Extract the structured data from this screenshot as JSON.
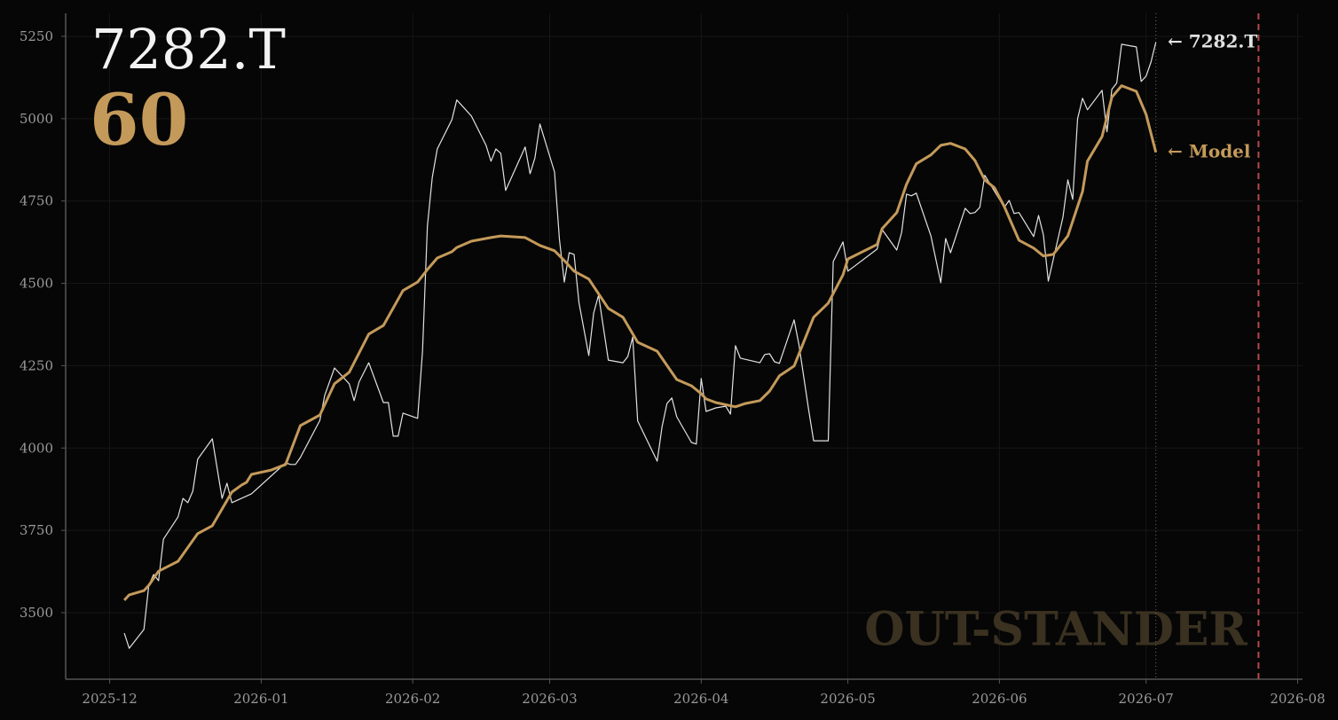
{
  "chart_data": {
    "type": "line",
    "title": "7282.T",
    "subtitle": "60",
    "watermark": "OUT-STANDER",
    "background": "#060606",
    "grid": true,
    "xlim": [
      "2025-11-22",
      "2026-08-02"
    ],
    "xticks": [
      "2025-12",
      "2026-01",
      "2026-02",
      "2026-03",
      "2026-04",
      "2026-05",
      "2026-06",
      "2026-07",
      "2026-08"
    ],
    "ylim": [
      3298,
      5320
    ],
    "yticks": [
      3500,
      3750,
      4000,
      4250,
      4500,
      4750,
      5000,
      5250
    ],
    "vlines": [
      {
        "x": "2026-07-03",
        "style": "dotted",
        "color": "#6a6a6a"
      },
      {
        "x": "2026-07-24",
        "style": "dashed",
        "color": "#b5474f"
      }
    ],
    "series": [
      {
        "name": "7282.T",
        "end_label": "← 7282.T",
        "color": "#e2e2e2",
        "width": 1.2,
        "x": [
          "2025-12-04",
          "2025-12-05",
          "2025-12-08",
          "2025-12-09",
          "2025-12-10",
          "2025-12-11",
          "2025-12-12",
          "2025-12-15",
          "2025-12-16",
          "2025-12-17",
          "2025-12-18",
          "2025-12-19",
          "2025-12-22",
          "2025-12-24",
          "2025-12-25",
          "2025-12-26",
          "2025-12-30",
          "2026-01-06",
          "2026-01-07",
          "2026-01-08",
          "2026-01-09",
          "2026-01-13",
          "2026-01-14",
          "2026-01-16",
          "2026-01-19",
          "2026-01-20",
          "2026-01-21",
          "2026-01-23",
          "2026-01-26",
          "2026-01-27",
          "2026-01-28",
          "2026-01-29",
          "2026-01-30",
          "2026-02-02",
          "2026-02-03",
          "2026-02-04",
          "2026-02-05",
          "2026-02-06",
          "2026-02-09",
          "2026-02-10",
          "2026-02-13",
          "2026-02-16",
          "2026-02-17",
          "2026-02-18",
          "2026-02-19",
          "2026-02-20",
          "2026-02-24",
          "2026-02-25",
          "2026-02-26",
          "2026-02-27",
          "2026-03-02",
          "2026-03-03",
          "2026-03-04",
          "2026-03-05",
          "2026-03-06",
          "2026-03-07",
          "2026-03-09",
          "2026-03-10",
          "2026-03-11",
          "2026-03-13",
          "2026-03-16",
          "2026-03-17",
          "2026-03-18",
          "2026-03-19",
          "2026-03-23",
          "2026-03-24",
          "2026-03-25",
          "2026-03-26",
          "2026-03-27",
          "2026-03-30",
          "2026-03-31",
          "2026-04-01",
          "2026-04-02",
          "2026-04-04",
          "2026-04-06",
          "2026-04-07",
          "2026-04-08",
          "2026-04-09",
          "2026-04-13",
          "2026-04-14",
          "2026-04-15",
          "2026-04-16",
          "2026-04-17",
          "2026-04-20",
          "2026-04-21",
          "2026-04-23",
          "2026-04-24",
          "2026-04-27",
          "2026-04-28",
          "2026-04-30",
          "2026-05-01",
          "2026-05-07",
          "2026-05-08",
          "2026-05-11",
          "2026-05-12",
          "2026-05-13",
          "2026-05-14",
          "2026-05-15",
          "2026-05-18",
          "2026-05-20",
          "2026-05-21",
          "2026-05-22",
          "2026-05-25",
          "2026-05-26",
          "2026-05-27",
          "2026-05-28",
          "2026-05-29",
          "2026-06-02",
          "2026-06-03",
          "2026-06-04",
          "2026-06-05",
          "2026-06-08",
          "2026-06-09",
          "2026-06-10",
          "2026-06-11",
          "2026-06-14",
          "2026-06-15",
          "2026-06-16",
          "2026-06-17",
          "2026-06-18",
          "2026-06-19",
          "2026-06-22",
          "2026-06-23",
          "2026-06-24",
          "2026-06-25",
          "2026-06-26",
          "2026-06-29",
          "2026-06-30",
          "2026-07-01",
          "2026-07-02",
          "2026-07-03"
        ],
        "values": [
          3438,
          3392,
          3449,
          3583,
          3616,
          3597,
          3723,
          3791,
          3847,
          3834,
          3869,
          3966,
          4028,
          3847,
          3893,
          3834,
          3861,
          3955,
          3950,
          3950,
          3971,
          4084,
          4160,
          4243,
          4195,
          4144,
          4200,
          4259,
          4138,
          4138,
          4036,
          4036,
          4106,
          4090,
          4294,
          4674,
          4822,
          4908,
          4997,
          5057,
          5008,
          4919,
          4871,
          4908,
          4895,
          4782,
          4914,
          4833,
          4881,
          4984,
          4838,
          4634,
          4504,
          4593,
          4588,
          4442,
          4281,
          4410,
          4464,
          4267,
          4259,
          4278,
          4337,
          4082,
          3960,
          4065,
          4135,
          4152,
          4095,
          4017,
          4012,
          4211,
          4111,
          4122,
          4127,
          4103,
          4311,
          4273,
          4259,
          4284,
          4286,
          4262,
          4257,
          4389,
          4313,
          4114,
          4022,
          4022,
          4566,
          4626,
          4537,
          4604,
          4663,
          4601,
          4655,
          4771,
          4766,
          4774,
          4644,
          4502,
          4636,
          4593,
          4728,
          4712,
          4715,
          4731,
          4828,
          4731,
          4752,
          4712,
          4715,
          4642,
          4706,
          4647,
          4507,
          4701,
          4814,
          4755,
          5000,
          5062,
          5027,
          5086,
          4960,
          5089,
          5108,
          5226,
          5218,
          5113,
          5129,
          5172,
          5232
        ]
      },
      {
        "name": "Model",
        "end_label": "← Model",
        "color": "#c49a5a",
        "width": 3,
        "x": [
          "2025-12-04",
          "2025-12-05",
          "2025-12-08",
          "2025-12-09",
          "2025-12-11",
          "2025-12-15",
          "2025-12-19",
          "2025-12-22",
          "2025-12-26",
          "2025-12-28",
          "2025-12-29",
          "2025-12-30",
          "2026-01-03",
          "2026-01-06",
          "2026-01-09",
          "2026-01-13",
          "2026-01-16",
          "2026-01-19",
          "2026-01-23",
          "2026-01-26",
          "2026-01-30",
          "2026-02-02",
          "2026-02-04",
          "2026-02-06",
          "2026-02-09",
          "2026-02-10",
          "2026-02-13",
          "2026-02-17",
          "2026-02-19",
          "2026-02-24",
          "2026-02-27",
          "2026-03-02",
          "2026-03-04",
          "2026-03-06",
          "2026-03-09",
          "2026-03-13",
          "2026-03-16",
          "2026-03-19",
          "2026-03-23",
          "2026-03-27",
          "2026-03-30",
          "2026-04-01",
          "2026-04-02",
          "2026-04-04",
          "2026-04-08",
          "2026-04-10",
          "2026-04-13",
          "2026-04-15",
          "2026-04-17",
          "2026-04-20",
          "2026-04-24",
          "2026-04-27",
          "2026-04-30",
          "2026-05-01",
          "2026-05-07",
          "2026-05-08",
          "2026-05-11",
          "2026-05-13",
          "2026-05-15",
          "2026-05-18",
          "2026-05-20",
          "2026-05-22",
          "2026-05-25",
          "2026-05-27",
          "2026-05-29",
          "2026-05-31",
          "2026-06-02",
          "2026-06-05",
          "2026-06-08",
          "2026-06-10",
          "2026-06-12",
          "2026-06-15",
          "2026-06-18",
          "2026-06-19",
          "2026-06-22",
          "2026-06-24",
          "2026-06-26",
          "2026-06-29",
          "2026-07-01",
          "2026-07-03"
        ],
        "values": [
          3538,
          3554,
          3567,
          3583,
          3626,
          3656,
          3740,
          3764,
          3866,
          3888,
          3896,
          3920,
          3933,
          3950,
          4068,
          4100,
          4195,
          4230,
          4346,
          4372,
          4478,
          4504,
          4542,
          4577,
          4596,
          4609,
          4628,
          4639,
          4644,
          4639,
          4615,
          4599,
          4569,
          4537,
          4513,
          4424,
          4397,
          4321,
          4294,
          4208,
          4189,
          4165,
          4149,
          4138,
          4125,
          4135,
          4144,
          4173,
          4219,
          4249,
          4397,
          4440,
          4526,
          4574,
          4618,
          4666,
          4715,
          4801,
          4863,
          4890,
          4919,
          4925,
          4908,
          4873,
          4814,
          4790,
          4733,
          4631,
          4607,
          4583,
          4588,
          4644,
          4779,
          4871,
          4946,
          5065,
          5100,
          5083,
          5013,
          4898
        ]
      }
    ]
  }
}
